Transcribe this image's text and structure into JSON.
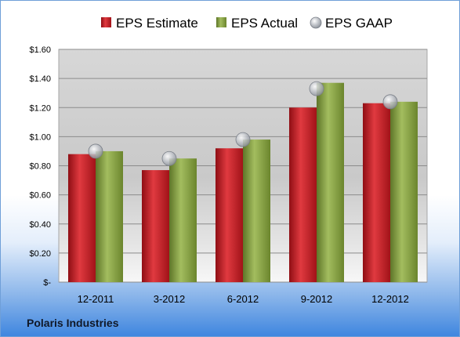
{
  "company": "Polaris Industries",
  "chart_data": {
    "type": "bar",
    "title": "",
    "xlabel": "",
    "ylabel": "",
    "categories": [
      "12-2011",
      "3-2012",
      "6-2012",
      "9-2012",
      "12-2012"
    ],
    "series": [
      {
        "name": "EPS Estimate",
        "values": [
          0.88,
          0.77,
          0.92,
          1.2,
          1.23
        ],
        "color": "#c0161f",
        "mark": "bar"
      },
      {
        "name": "EPS Actual",
        "values": [
          0.9,
          0.85,
          0.98,
          1.37,
          1.24
        ],
        "color": "#7f9b3a",
        "mark": "bar"
      },
      {
        "name": "EPS GAAP",
        "values": [
          0.9,
          0.85,
          0.98,
          1.33,
          1.24
        ],
        "color": "#b7bcc4",
        "mark": "circle"
      }
    ],
    "ylim": [
      0,
      1.6
    ],
    "yticks": [
      0,
      0.2,
      0.4,
      0.6,
      0.8,
      1.0,
      1.2,
      1.4,
      1.6
    ],
    "ytick_labels": [
      "$-",
      "$0.20",
      "$0.40",
      "$0.60",
      "$0.80",
      "$1.00",
      "$1.20",
      "$1.40",
      "$1.60"
    ],
    "grid": true,
    "legend_position": "top-center"
  }
}
